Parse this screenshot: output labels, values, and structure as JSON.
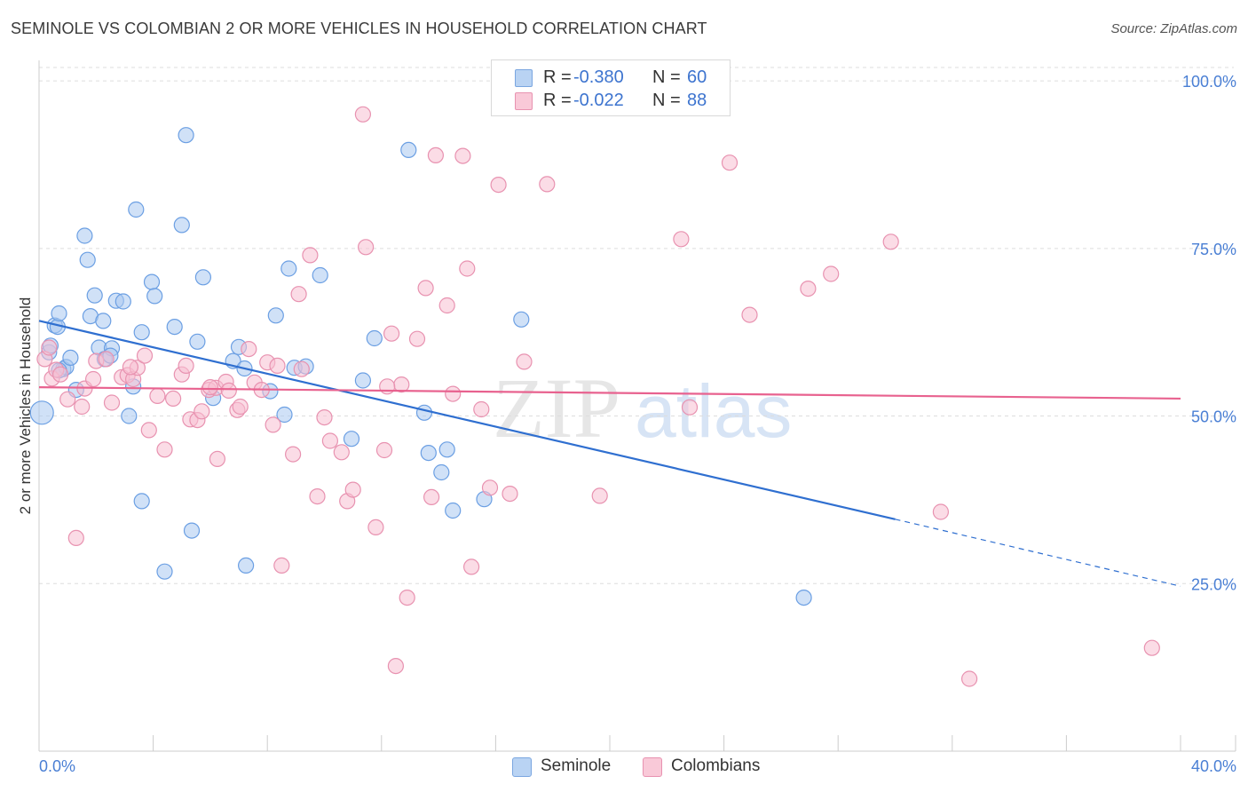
{
  "title": "SEMINOLE VS COLOMBIAN 2 OR MORE VEHICLES IN HOUSEHOLD CORRELATION CHART",
  "source": "Source: ZipAtlas.com",
  "watermark": {
    "zip": "ZIP",
    "atlas": "atlas"
  },
  "legend_top": [
    {
      "r_label": "R =",
      "r_value": "-0.380",
      "n_label": "N =",
      "n_value": "60",
      "color": "#a9c8f0",
      "border": "#7aa6e0"
    },
    {
      "r_label": "R =",
      "r_value": "-0.022",
      "n_label": "N =",
      "n_value": "88",
      "color": "#f7bfd1",
      "border": "#e892b0"
    }
  ],
  "legend_bottom": [
    {
      "label": "Seminole",
      "color": "#b9d3f3",
      "border": "#7aa6e0"
    },
    {
      "label": "Colombians",
      "color": "#f9c9d8",
      "border": "#e892b0"
    }
  ],
  "chart_data": {
    "type": "scatter",
    "title": "SEMINOLE VS COLOMBIAN 2 OR MORE VEHICLES IN HOUSEHOLD CORRELATION CHART",
    "xlabel": "",
    "ylabel": "2 or more Vehicles in Household",
    "xlim": [
      0,
      40
    ],
    "ylim": [
      0,
      102
    ],
    "x_tick_labels": [
      "0.0%",
      "40.0%"
    ],
    "y_ticks": [
      25,
      50,
      75,
      100
    ],
    "y_tick_labels": [
      "25.0%",
      "50.0%",
      "75.0%",
      "100.0%"
    ],
    "grid": true,
    "legend_position": "top-center",
    "series": [
      {
        "name": "Seminole",
        "color": "#6b9fe3",
        "fill": "#a9c8f0",
        "trend": {
          "x0": 0,
          "y0": 64.2,
          "x1": 30,
          "y1": 34.6,
          "dashed_to_x": 40,
          "dashed_to_y": 24.6,
          "color": "#2f6fd0"
        },
        "points": [
          [
            0.1,
            50.5
          ],
          [
            0.35,
            59.5
          ],
          [
            0.4,
            60.5
          ],
          [
            0.55,
            63.5
          ],
          [
            0.65,
            63.3
          ],
          [
            0.7,
            65.3
          ],
          [
            0.85,
            57.0
          ],
          [
            0.95,
            57.3
          ],
          [
            1.1,
            58.7
          ],
          [
            1.3,
            53.9
          ],
          [
            1.6,
            76.9
          ],
          [
            1.7,
            73.3
          ],
          [
            1.95,
            68.0
          ],
          [
            1.8,
            64.9
          ],
          [
            2.25,
            64.2
          ],
          [
            2.1,
            60.2
          ],
          [
            2.3,
            58.5
          ],
          [
            2.55,
            60.1
          ],
          [
            2.5,
            59.0
          ],
          [
            2.7,
            67.2
          ],
          [
            2.95,
            67.1
          ],
          [
            3.15,
            50.0
          ],
          [
            3.3,
            54.4
          ],
          [
            3.4,
            80.8
          ],
          [
            3.6,
            62.5
          ],
          [
            3.6,
            37.3
          ],
          [
            3.95,
            70.0
          ],
          [
            4.05,
            67.9
          ],
          [
            4.4,
            26.8
          ],
          [
            4.75,
            63.3
          ],
          [
            5.0,
            78.5
          ],
          [
            5.15,
            91.9
          ],
          [
            5.35,
            32.9
          ],
          [
            5.55,
            61.1
          ],
          [
            5.75,
            70.7
          ],
          [
            6.1,
            52.7
          ],
          [
            6.8,
            58.2
          ],
          [
            7.0,
            60.3
          ],
          [
            7.2,
            57.1
          ],
          [
            7.25,
            27.7
          ],
          [
            8.1,
            53.7
          ],
          [
            8.3,
            65.0
          ],
          [
            8.6,
            50.2
          ],
          [
            8.75,
            72.0
          ],
          [
            8.95,
            57.2
          ],
          [
            9.35,
            57.4
          ],
          [
            9.85,
            71.0
          ],
          [
            10.95,
            46.6
          ],
          [
            11.35,
            55.3
          ],
          [
            11.75,
            61.6
          ],
          [
            12.95,
            89.7
          ],
          [
            13.5,
            50.5
          ],
          [
            13.65,
            44.5
          ],
          [
            14.1,
            41.6
          ],
          [
            14.3,
            45.0
          ],
          [
            14.5,
            35.9
          ],
          [
            15.6,
            37.6
          ],
          [
            16.9,
            64.4
          ],
          [
            26.8,
            22.9
          ],
          [
            0.7,
            56.8
          ]
        ]
      },
      {
        "name": "Colombians",
        "color": "#e892b0",
        "fill": "#f7bfd1",
        "trend": {
          "x0": 0,
          "y0": 54.3,
          "x1": 40,
          "y1": 52.6,
          "color": "#e8628f"
        },
        "points": [
          [
            0.2,
            58.5
          ],
          [
            0.35,
            60.2
          ],
          [
            0.45,
            55.6
          ],
          [
            0.6,
            56.9
          ],
          [
            0.75,
            56.2
          ],
          [
            1.0,
            52.5
          ],
          [
            1.3,
            31.8
          ],
          [
            1.5,
            51.4
          ],
          [
            1.6,
            54.1
          ],
          [
            1.9,
            55.5
          ],
          [
            2.0,
            58.2
          ],
          [
            2.35,
            58.5
          ],
          [
            2.55,
            52.0
          ],
          [
            2.9,
            55.8
          ],
          [
            3.1,
            56.1
          ],
          [
            3.3,
            55.5
          ],
          [
            3.45,
            57.2
          ],
          [
            3.7,
            59.0
          ],
          [
            3.85,
            47.9
          ],
          [
            4.15,
            53.0
          ],
          [
            4.4,
            45.0
          ],
          [
            4.7,
            52.6
          ],
          [
            5.0,
            56.2
          ],
          [
            5.15,
            57.5
          ],
          [
            5.3,
            49.5
          ],
          [
            5.55,
            49.4
          ],
          [
            5.7,
            50.7
          ],
          [
            5.95,
            53.9
          ],
          [
            6.2,
            54.2
          ],
          [
            6.25,
            43.6
          ],
          [
            6.55,
            55.1
          ],
          [
            6.65,
            53.8
          ],
          [
            6.95,
            50.9
          ],
          [
            7.05,
            51.4
          ],
          [
            7.35,
            60.0
          ],
          [
            7.55,
            55.0
          ],
          [
            7.8,
            53.9
          ],
          [
            8.0,
            58.0
          ],
          [
            8.2,
            48.7
          ],
          [
            8.35,
            57.5
          ],
          [
            8.5,
            27.7
          ],
          [
            8.9,
            44.3
          ],
          [
            9.1,
            68.2
          ],
          [
            9.5,
            74.0
          ],
          [
            9.75,
            38.0
          ],
          [
            10.0,
            49.8
          ],
          [
            10.2,
            46.3
          ],
          [
            10.6,
            44.6
          ],
          [
            10.8,
            37.3
          ],
          [
            11.0,
            39.0
          ],
          [
            11.35,
            95.0
          ],
          [
            11.45,
            75.2
          ],
          [
            11.8,
            33.4
          ],
          [
            12.1,
            44.9
          ],
          [
            12.35,
            62.3
          ],
          [
            12.5,
            12.7
          ],
          [
            12.7,
            54.7
          ],
          [
            12.9,
            22.9
          ],
          [
            13.25,
            61.5
          ],
          [
            13.55,
            69.1
          ],
          [
            13.75,
            37.9
          ],
          [
            13.9,
            88.9
          ],
          [
            14.3,
            66.5
          ],
          [
            14.5,
            53.3
          ],
          [
            14.85,
            88.8
          ],
          [
            15.0,
            72.0
          ],
          [
            15.15,
            27.5
          ],
          [
            15.5,
            51.0
          ],
          [
            15.8,
            39.3
          ],
          [
            16.1,
            84.5
          ],
          [
            16.5,
            38.4
          ],
          [
            17.0,
            58.1
          ],
          [
            17.8,
            84.6
          ],
          [
            19.65,
            38.1
          ],
          [
            22.5,
            76.4
          ],
          [
            22.8,
            51.3
          ],
          [
            24.2,
            87.8
          ],
          [
            24.9,
            65.1
          ],
          [
            26.95,
            69.0
          ],
          [
            27.75,
            71.2
          ],
          [
            29.85,
            76.0
          ],
          [
            31.6,
            35.7
          ],
          [
            32.6,
            10.8
          ],
          [
            39.0,
            15.4
          ],
          [
            3.2,
            57.3
          ],
          [
            6.0,
            54.3
          ],
          [
            9.2,
            57.0
          ],
          [
            12.2,
            54.4
          ]
        ]
      }
    ]
  }
}
